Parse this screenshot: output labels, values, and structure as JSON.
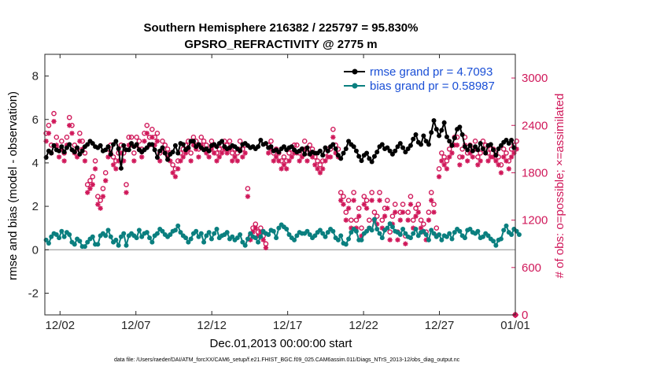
{
  "colors": {
    "rmse": "#000000",
    "bias": "#0a7f7f",
    "obs": "#d0185a",
    "legend_text": "#1a4fd6",
    "zero_line": "#a0a0a0"
  },
  "chart_data": {
    "type": "line",
    "title": "Southern Hemisphere 216382 / 225797 = 95.830%",
    "subtitle": "GPSRO_REFRACTIVITY @ 2775 m",
    "xlabel": "Dec.01,2013 00:00:00 start",
    "ylabel": "rmse and bias (model - observation)",
    "y2label": "# of obs: o=possible; ×=assimilated",
    "footnote": "data file: /Users/raeder/DAI/ATM_forcXX/CAM6_setup/f.e21.FHIST_BGC.f09_025.CAM6assim.011/Diags_NTrS_2013-12/obs_diag_output.nc",
    "xlim": [
      0,
      31
    ],
    "ylim": [
      -3,
      9
    ],
    "y2lim": [
      0,
      3300
    ],
    "x_ticks": [
      1,
      6,
      11,
      16,
      21,
      26,
      31
    ],
    "x_tick_labels": [
      "12/02",
      "12/07",
      "12/12",
      "12/17",
      "12/22",
      "12/27",
      "01/01"
    ],
    "y_ticks": [
      -2,
      0,
      2,
      4,
      6,
      8
    ],
    "y_tick_labels": [
      "-2",
      "0",
      "2",
      "4",
      "6",
      "8"
    ],
    "y2_ticks": [
      0,
      600,
      1200,
      1800,
      2400,
      3000
    ],
    "y2_tick_labels": [
      "0",
      "600",
      "1200",
      "1800",
      "2400",
      "3000"
    ],
    "legend_position": "top-right",
    "series": [
      {
        "name": "rmse grand pr = 4.7093",
        "axis": "left",
        "marker": "filled-circle",
        "values": [
          4.25,
          4.55,
          4.45,
          4.8,
          4.6,
          4.55,
          4.75,
          4.5,
          4.7,
          4.85,
          4.6,
          4.5,
          4.7,
          4.4,
          4.55,
          4.75,
          4.85,
          5.0,
          4.9,
          4.75,
          4.7,
          4.8,
          4.55,
          4.6,
          4.75,
          4.4,
          4.85,
          5.0,
          4.65,
          3.75,
          4.8,
          4.6,
          4.6,
          4.9,
          4.75,
          4.85,
          4.6,
          4.5,
          4.6,
          4.7,
          4.85,
          4.85,
          4.6,
          4.25,
          4.55,
          4.7,
          4.45,
          4.15,
          4.4,
          4.5,
          4.8,
          4.45,
          4.9,
          4.85,
          4.6,
          4.7,
          5.0,
          5.0,
          4.75,
          4.85,
          4.7,
          4.6,
          4.65,
          4.55,
          4.8,
          4.85,
          4.75,
          4.9,
          5.0,
          4.75,
          4.65,
          4.7,
          4.8,
          4.75,
          4.65,
          4.55,
          4.85,
          4.9,
          4.8,
          4.7,
          4.75,
          4.65,
          4.75,
          5.05,
          4.85,
          4.9,
          4.7,
          4.75,
          4.55,
          4.6,
          4.5,
          4.65,
          4.75,
          4.6,
          4.7,
          4.75,
          4.6,
          4.5,
          4.55,
          4.65,
          4.4,
          4.7,
          4.4,
          4.5,
          4.45,
          4.45,
          4.55,
          4.35,
          4.7,
          4.55,
          4.75,
          4.85,
          4.65,
          4.35,
          4.2,
          4.45,
          4.65,
          5.0,
          4.85,
          4.75,
          4.55,
          4.3,
          4.1,
          4.35,
          4.45,
          4.2,
          4.05,
          4.3,
          4.5,
          4.75,
          4.85,
          4.65,
          4.7,
          4.55,
          4.4,
          4.55,
          4.75,
          4.9,
          4.7,
          4.5,
          4.65,
          4.8,
          5.1,
          5.3,
          4.95,
          4.85,
          5.25,
          5.0,
          4.85,
          5.4,
          5.95,
          5.55,
          5.25,
          5.5,
          5.85,
          5.2,
          5.0,
          4.8,
          5.15,
          5.55,
          5.65,
          5.3,
          4.75,
          4.6,
          4.8,
          4.55,
          4.75,
          4.6,
          4.9,
          4.65,
          4.45,
          4.8,
          4.85,
          4.6,
          4.35,
          4.65,
          4.8,
          4.95,
          5.05,
          4.9,
          5.05,
          4.7
        ]
      },
      {
        "name": "bias grand pr = 0.58987",
        "axis": "left",
        "marker": "filled-circle",
        "values": [
          0.45,
          0.3,
          0.6,
          0.75,
          0.7,
          0.55,
          0.85,
          0.6,
          0.8,
          0.7,
          0.35,
          0.25,
          0.5,
          0.4,
          0.15,
          0.15,
          0.35,
          0.5,
          0.6,
          0.25,
          0.25,
          0.65,
          0.75,
          0.65,
          0.9,
          0.6,
          0.35,
          0.45,
          0.2,
          0.6,
          0.75,
          0.2,
          0.65,
          0.75,
          0.65,
          0.55,
          0.9,
          0.6,
          0.75,
          0.8,
          0.55,
          0.35,
          0.65,
          0.75,
          0.95,
          0.85,
          0.7,
          0.6,
          0.7,
          0.85,
          0.9,
          1.1,
          0.8,
          0.65,
          0.55,
          0.35,
          0.5,
          0.75,
          0.85,
          0.6,
          0.75,
          0.35,
          0.65,
          0.8,
          0.5,
          0.75,
          0.95,
          0.55,
          0.65,
          0.7,
          0.8,
          0.5,
          0.6,
          0.45,
          0.55,
          0.7,
          0.35,
          0.2,
          0.5,
          0.75,
          0.6,
          0.55,
          0.35,
          0.6,
          0.85,
          0.75,
          0.7,
          0.9,
          0.85,
          0.55,
          1.0,
          1.15,
          1.05,
          0.95,
          0.7,
          0.55,
          0.45,
          0.65,
          0.8,
          0.75,
          0.75,
          0.85,
          0.7,
          0.55,
          0.65,
          0.8,
          0.9,
          0.75,
          0.6,
          0.8,
          0.95,
          0.85,
          0.55,
          0.45,
          0.65,
          0.3,
          0.25,
          0.5,
          0.8,
          0.95,
          0.85,
          0.45,
          0.45,
          0.75,
          0.85,
          1.0,
          0.9,
          1.4,
          0.95,
          0.75,
          0.55,
          0.9,
          1.0,
          1.2,
          1.05,
          0.85,
          0.8,
          0.7,
          0.95,
          0.75,
          0.6,
          0.55,
          0.75,
          0.95,
          0.65,
          0.8,
          0.85,
          0.7,
          0.45,
          0.9,
          0.75,
          0.6,
          0.7,
          0.45,
          0.65,
          0.6,
          0.75,
          0.5,
          0.8,
          0.95,
          0.85,
          0.65,
          0.55,
          0.9,
          0.95,
          0.8,
          0.75,
          0.85,
          0.55,
          0.6,
          0.75,
          0.65,
          0.5,
          0.4,
          0.2,
          0.45,
          0.5,
          0.9,
          1.1,
          0.8,
          0.7,
          0.95,
          0.85,
          0.7
        ]
      },
      {
        "name": "possible",
        "axis": "right",
        "marker": "open-circle",
        "values": [
          2300,
          2400,
          2150,
          2550,
          2250,
          2100,
          2200,
          2050,
          2250,
          2500,
          2400,
          2150,
          2100,
          2300,
          2200,
          2050,
          1650,
          1700,
          1750,
          1950,
          1500,
          1450,
          1600,
          1800,
          2100,
          2150,
          2000,
          1950,
          2050,
          2150,
          2050,
          1650,
          2250,
          2250,
          2050,
          2250,
          2200,
          2100,
          2300,
          2400,
          2250,
          2350,
          2250,
          2300,
          2050,
          2200,
          2150,
          2100,
          2050,
          1900,
          1850,
          1950,
          2050,
          2100,
          2150,
          2200,
          2050,
          2250,
          2200,
          2100,
          2250,
          2200,
          2150,
          2100,
          2200,
          2150,
          2050,
          2100,
          2150,
          2200,
          2150,
          2200,
          2050,
          2100,
          2050,
          2200,
          2100,
          2150,
          1600,
          1000,
          1100,
          1150,
          1050,
          1100,
          1000,
          900,
          2150,
          2200,
          2050,
          2100,
          2050,
          1950,
          2000,
          1950,
          2050,
          2100,
          2150,
          2150,
          2050,
          2100,
          2200,
          2050,
          2150,
          2100,
          2000,
          1950,
          1900,
          1950,
          2050,
          2100,
          2100,
          2350,
          2150,
          2100,
          1550,
          1500,
          1300,
          1450,
          1200,
          1550,
          1200,
          1350,
          1100,
          1500,
          1450,
          1200,
          1550,
          1300,
          1250,
          1550,
          1200,
          1350,
          1450,
          1050,
          1250,
          1400,
          1050,
          1300,
          1400,
          1000,
          1300,
          1500,
          1200,
          1350,
          1400,
          1200,
          1150,
          1050,
          1300,
          1550,
          1400,
          1100,
          1850,
          2050,
          2000,
          1950,
          2100,
          2150,
          2250,
          2250,
          2000,
          2100,
          2250,
          2050,
          2150,
          2100,
          2200,
          2000,
          2050,
          2200,
          2150,
          2050,
          2100,
          2100,
          2050,
          2000,
          1900,
          2100,
          2050,
          1950,
          2100,
          2150,
          2200
        ]
      },
      {
        "name": "assimilated",
        "axis": "right",
        "marker": "asterisk",
        "values": [
          2200,
          2300,
          2050,
          2450,
          2150,
          2000,
          2100,
          1950,
          2150,
          2400,
          2300,
          2050,
          2000,
          2200,
          2100,
          1950,
          1550,
          1600,
          1650,
          1850,
          1400,
          1350,
          1500,
          1700,
          2000,
          2050,
          1900,
          1850,
          1950,
          2050,
          1950,
          1550,
          2150,
          2150,
          1950,
          2150,
          2100,
          2000,
          2200,
          2300,
          2150,
          2250,
          2150,
          2200,
          1950,
          2100,
          2050,
          2000,
          1950,
          1800,
          1750,
          1850,
          1950,
          2000,
          2050,
          2100,
          1950,
          2150,
          2100,
          2000,
          2150,
          2100,
          2050,
          2000,
          2100,
          2050,
          1950,
          2000,
          2050,
          2100,
          2050,
          2100,
          1950,
          2000,
          1950,
          2100,
          2000,
          2050,
          1500,
          950,
          1050,
          1100,
          1000,
          1050,
          950,
          850,
          2050,
          2100,
          1950,
          2000,
          1950,
          1850,
          1900,
          1850,
          1950,
          2000,
          2050,
          2050,
          1950,
          2000,
          2100,
          1950,
          2050,
          2000,
          1900,
          1850,
          1800,
          1850,
          1950,
          2000,
          2000,
          2250,
          2050,
          2000,
          1450,
          1400,
          1200,
          1350,
          1100,
          1450,
          1100,
          1250,
          1000,
          1400,
          1350,
          1100,
          1450,
          1200,
          1150,
          1450,
          1100,
          1250,
          1350,
          950,
          1150,
          1300,
          950,
          1200,
          1300,
          900,
          1200,
          1400,
          1100,
          1250,
          1300,
          1100,
          1050,
          950,
          1200,
          1450,
          1300,
          1000,
          1750,
          1950,
          1900,
          1850,
          2000,
          2050,
          2150,
          2150,
          1900,
          2000,
          2150,
          1950,
          2050,
          2000,
          2100,
          1900,
          1950,
          2100,
          2050,
          1950,
          2000,
          2000,
          1950,
          1900,
          1800,
          2000,
          1950,
          1850,
          2000,
          2050,
          2100
        ]
      }
    ],
    "outlier_marker_value": 0
  }
}
